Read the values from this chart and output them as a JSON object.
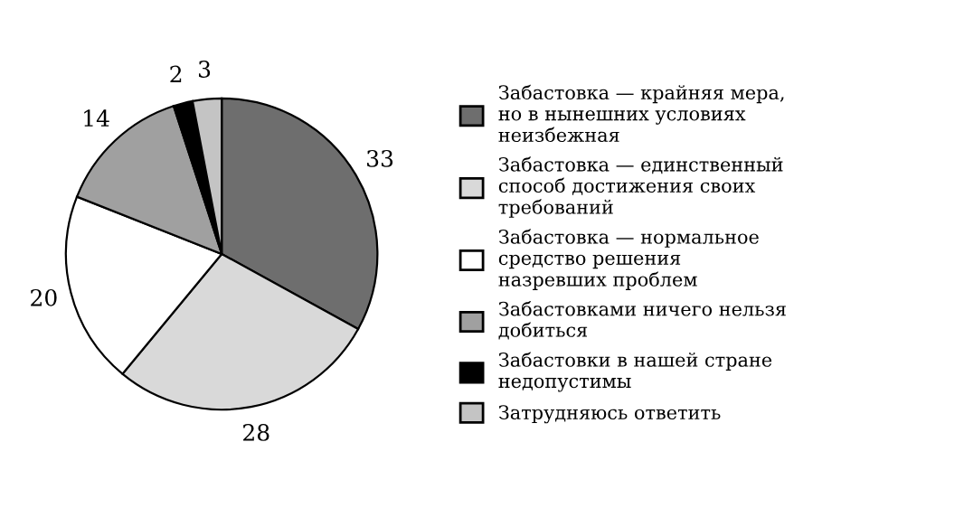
{
  "chart_data": {
    "type": "pie",
    "categories": [
      "Забастовка — крайняя мера,\nно в нынешних условиях\nнеизбежная",
      "Забастовка — единственный\nспособ достижения своих\nтребований",
      "Забастовка — нормальное\nсредство решения\nназревших проблем",
      "Забастовками ничего нельзя\nдобиться",
      "Забастовки в нашей стране\nнедопустимы",
      "Затрудняюсь ответить"
    ],
    "values": [
      33,
      28,
      20,
      14,
      2,
      3
    ],
    "colors": [
      "#6e6e6e",
      "#d9d9d9",
      "#ffffff",
      "#a0a0a0",
      "#000000",
      "#c4c4c4"
    ],
    "data_labels": true,
    "legend": "right"
  }
}
